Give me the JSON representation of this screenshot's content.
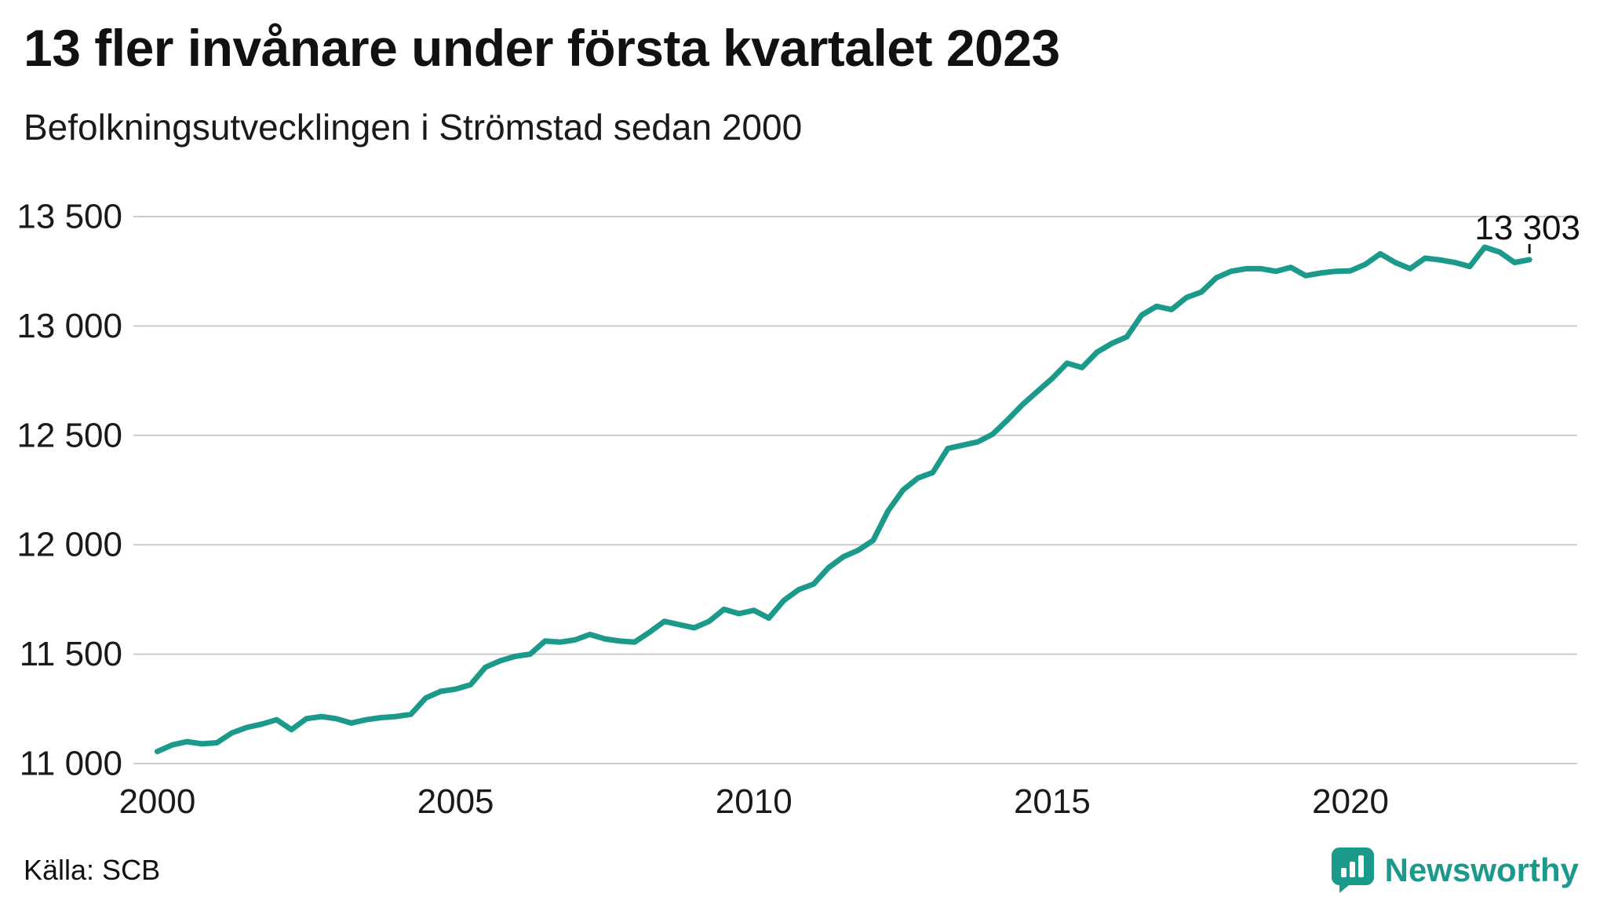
{
  "header": {
    "title": "13 fler invånare under första kvartalet 2023",
    "subtitle": "Befolkningsutvecklingen i Strömstad sedan 2000"
  },
  "footer": {
    "source": "Källa: SCB",
    "brand": "Newsworthy"
  },
  "colors": {
    "line": "#1b998b",
    "grid": "#cccccc",
    "text": "#1a1a1a",
    "annotation": "#111111",
    "brand": "#1b998b"
  },
  "chart_data": {
    "type": "line",
    "title": "13 fler invånare under första kvartalet 2023",
    "subtitle": "Befolkningsutvecklingen i Strömstad sedan 2000",
    "xlabel": "",
    "ylabel": "",
    "grid": "horizontal",
    "legend": "none",
    "x_unit": "year (quarterly resolution)",
    "x_start": 2000.0,
    "x_step": 0.25,
    "x_range": [
      1999.6,
      2023.8
    ],
    "y_range": [
      11000,
      13500
    ],
    "x_ticks": {
      "values": [
        2000,
        2005,
        2010,
        2015,
        2020
      ],
      "labels": [
        "2000",
        "2005",
        "2010",
        "2015",
        "2020"
      ]
    },
    "y_ticks": {
      "values": [
        11000,
        11500,
        12000,
        12500,
        13000,
        13500
      ],
      "labels": [
        "11 000",
        "11 500",
        "12 000",
        "12 500",
        "13 000",
        "13 500"
      ]
    },
    "values": [
      11055,
      11085,
      11100,
      11090,
      11095,
      11140,
      11165,
      11180,
      11200,
      11155,
      11205,
      11215,
      11205,
      11185,
      11200,
      11210,
      11215,
      11225,
      11300,
      11330,
      11340,
      11360,
      11440,
      11470,
      11490,
      11500,
      11560,
      11555,
      11565,
      11590,
      11570,
      11560,
      11555,
      11600,
      11650,
      11635,
      11620,
      11650,
      11705,
      11685,
      11700,
      11665,
      11745,
      11795,
      11820,
      11895,
      11945,
      11975,
      12020,
      12155,
      12250,
      12305,
      12330,
      12440,
      12455,
      12470,
      12505,
      12570,
      12640,
      12700,
      12760,
      12830,
      12810,
      12880,
      12920,
      12950,
      13050,
      13090,
      13075,
      13130,
      13155,
      13220,
      13250,
      13262,
      13262,
      13250,
      13268,
      13230,
      13242,
      13250,
      13252,
      13282,
      13330,
      13290,
      13262,
      13310,
      13302,
      13290,
      13272,
      13360,
      13338,
      13290,
      13303
    ],
    "annotation": {
      "text": "13 303",
      "x": 2023.0,
      "y": 13303
    }
  }
}
